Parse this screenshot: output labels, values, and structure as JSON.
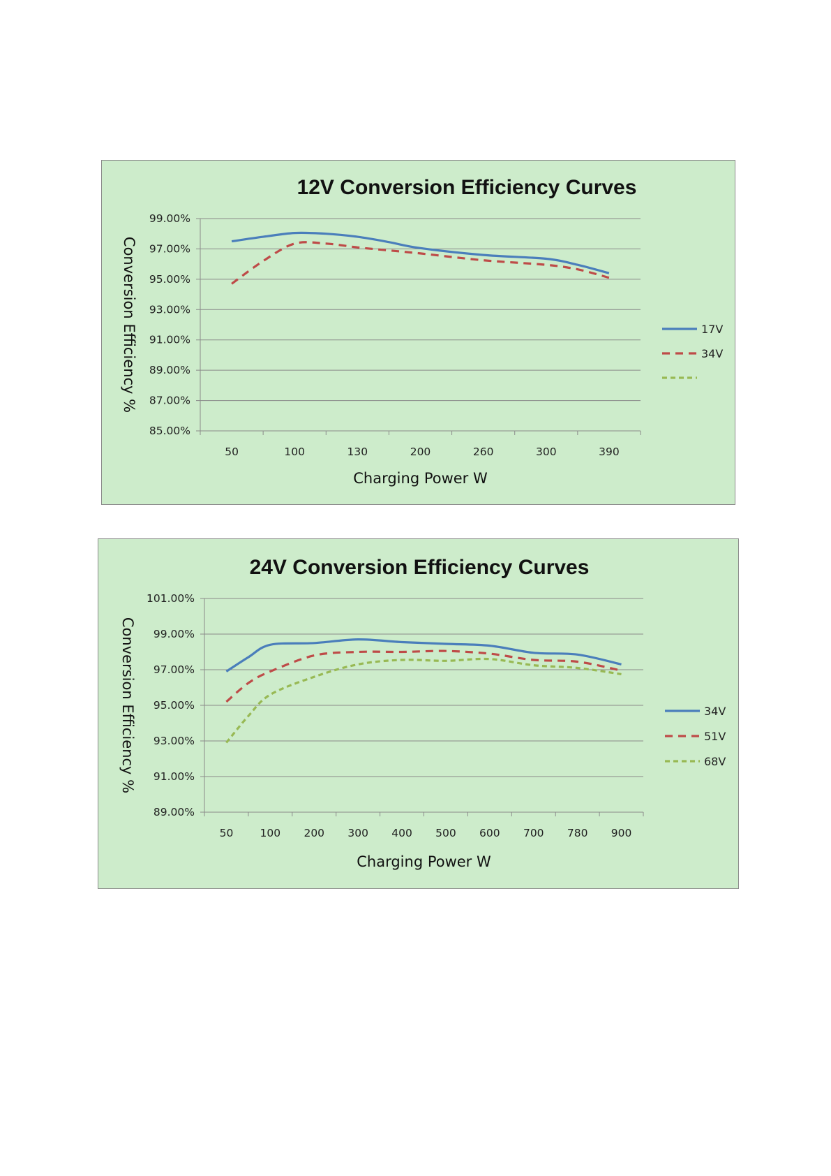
{
  "chart_data": [
    {
      "type": "line",
      "title": "12V Conversion Efficiency Curves",
      "xlabel": "Charging Power W",
      "ylabel": "Conversion Efficiency %",
      "categories": [
        "50",
        "100",
        "130",
        "200",
        "260",
        "300",
        "390"
      ],
      "y_ticks": [
        "85.00%",
        "87.00%",
        "89.00%",
        "91.00%",
        "93.00%",
        "95.00%",
        "97.00%",
        "99.00%"
      ],
      "ylim": [
        85,
        99
      ],
      "grid": true,
      "legend_position": "right",
      "series": [
        {
          "name": "17V",
          "color": "#4a7ebb",
          "style": "solid",
          "x": [
            50,
            75,
            100,
            115,
            130,
            165,
            200,
            260,
            300,
            345,
            390
          ],
          "values": [
            97.5,
            97.8,
            98.05,
            98.0,
            97.8,
            97.45,
            97.05,
            96.6,
            96.35,
            95.95,
            95.4
          ]
        },
        {
          "name": "34V",
          "color": "#be4b48",
          "style": "dashed",
          "x": [
            50,
            75,
            100,
            115,
            130,
            165,
            200,
            260,
            300,
            345,
            390
          ],
          "values": [
            94.7,
            96.2,
            97.35,
            97.35,
            97.1,
            96.9,
            96.7,
            96.25,
            95.95,
            95.65,
            95.1
          ]
        },
        {
          "name": "",
          "color": "#98b954",
          "style": "dashed",
          "x": [],
          "values": []
        }
      ]
    },
    {
      "type": "line",
      "title": "24V Conversion Efficiency Curves",
      "xlabel": "Charging Power W",
      "ylabel": "Conversion Efficiency %",
      "categories": [
        "50",
        "100",
        "200",
        "300",
        "400",
        "500",
        "600",
        "700",
        "780",
        "900"
      ],
      "y_ticks": [
        "89.00%",
        "91.00%",
        "93.00%",
        "95.00%",
        "97.00%",
        "99.00%",
        "101.00%"
      ],
      "ylim": [
        89,
        101
      ],
      "grid": true,
      "legend_position": "right",
      "series": [
        {
          "name": "34V",
          "color": "#4a7ebb",
          "style": "solid",
          "x": [
            50,
            75,
            100,
            200,
            300,
            400,
            500,
            600,
            700,
            780,
            900
          ],
          "values": [
            96.9,
            97.7,
            98.4,
            98.5,
            98.7,
            98.55,
            98.45,
            98.35,
            97.95,
            97.85,
            97.3
          ]
        },
        {
          "name": "51V",
          "color": "#be4b48",
          "style": "dashed",
          "x": [
            50,
            75,
            100,
            200,
            300,
            400,
            500,
            600,
            700,
            780,
            900
          ],
          "values": [
            95.2,
            96.25,
            96.9,
            97.8,
            98.0,
            98.0,
            98.05,
            97.9,
            97.55,
            97.45,
            96.95
          ]
        },
        {
          "name": "68V",
          "color": "#98b954",
          "style": "dashed",
          "x": [
            50,
            75,
            100,
            200,
            300,
            400,
            500,
            600,
            700,
            780,
            900
          ],
          "values": [
            92.9,
            94.4,
            95.6,
            96.6,
            97.3,
            97.55,
            97.5,
            97.6,
            97.25,
            97.1,
            96.75
          ]
        }
      ]
    }
  ]
}
